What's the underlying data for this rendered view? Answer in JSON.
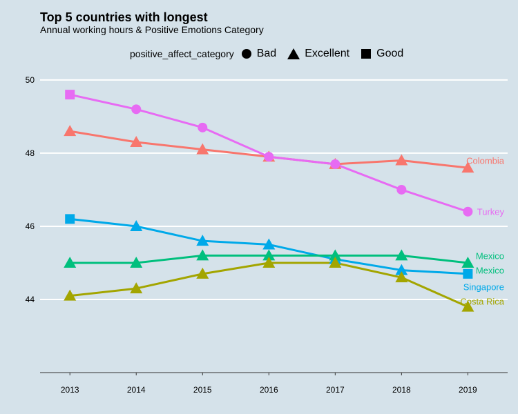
{
  "chart_data": {
    "type": "line",
    "title": "Top 5 countries with longest",
    "subtitle": "Annual working hours & Positive Emotions Category",
    "legend": {
      "title": "positive_affect_category",
      "placement": "top",
      "entries": [
        {
          "label": "Bad",
          "shape": "circle"
        },
        {
          "label": "Excellent",
          "shape": "triangle"
        },
        {
          "label": "Good",
          "shape": "square"
        }
      ]
    },
    "x": [
      2013,
      2014,
      2015,
      2016,
      2017,
      2018,
      2019
    ],
    "ylim": [
      42,
      50.3
    ],
    "xlim": [
      2012.55,
      2019.6
    ],
    "y_ticks": [
      44,
      46,
      48,
      50
    ],
    "grid": "horizontal",
    "series": [
      {
        "name": "Colombia",
        "color": "#f8766d",
        "values": [
          48.6,
          48.3,
          48.1,
          47.9,
          47.7,
          47.8,
          47.6
        ],
        "shapes": [
          "triangle",
          "triangle",
          "triangle",
          "triangle",
          "triangle",
          "triangle",
          "triangle"
        ]
      },
      {
        "name": "Turkey",
        "color": "#e76bf3",
        "values": [
          49.6,
          49.2,
          48.7,
          47.9,
          47.7,
          47.0,
          46.4
        ],
        "shapes": [
          "square",
          "circle",
          "circle",
          "circle",
          "circle",
          "circle",
          "circle"
        ]
      },
      {
        "name": "Singapore",
        "color": "#00a9e9",
        "values": [
          46.2,
          46.0,
          45.6,
          45.5,
          45.1,
          44.8,
          44.7
        ],
        "shapes": [
          "square",
          "triangle",
          "triangle",
          "triangle",
          "triangle",
          "triangle",
          "square"
        ]
      },
      {
        "name": "Mexico",
        "color": "#00bf7d",
        "values": [
          45.0,
          45.0,
          45.2,
          45.2,
          45.2,
          45.2,
          45.0
        ],
        "shapes": [
          "triangle",
          "triangle",
          "triangle",
          "triangle",
          "triangle",
          "triangle",
          "triangle"
        ]
      },
      {
        "name": "Costa Rica",
        "color": "#a3a500",
        "values": [
          44.1,
          44.3,
          44.7,
          45.0,
          45.0,
          44.6,
          43.8
        ],
        "shapes": [
          "triangle",
          "triangle",
          "triangle",
          "triangle",
          "triangle",
          "triangle",
          "triangle"
        ]
      }
    ],
    "end_labels": [
      {
        "text": "Colombia",
        "series": "Colombia",
        "y": 47.8
      },
      {
        "text": "Turkey",
        "series": "Turkey",
        "y": 46.4
      },
      {
        "text": "Mexico",
        "series": "Mexico",
        "y": 45.2
      },
      {
        "text": "Mexico",
        "series": "Mexico",
        "y": 44.8
      },
      {
        "text": "Singapore",
        "series": "Singapore",
        "y": 44.35
      },
      {
        "text": "Costa Rica",
        "series": "Costa Rica",
        "y": 43.95
      }
    ]
  }
}
